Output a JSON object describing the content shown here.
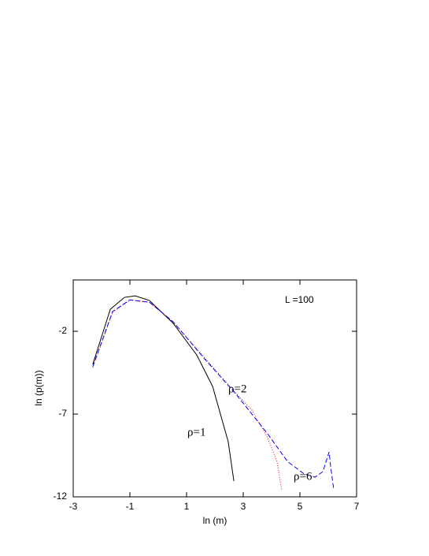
{
  "chart_data": {
    "type": "line",
    "x_label": "ln (m)",
    "y_label": "ln (p(m))",
    "annotation": "L =100",
    "xlim": [
      -3,
      7
    ],
    "xticks": [
      -3,
      -1,
      1,
      3,
      5,
      7
    ],
    "ylim": [
      -12,
      1.1
    ],
    "yticks": [
      -12,
      -7,
      -2
    ],
    "series": [
      {
        "name": "ρ=1",
        "color": "#000000",
        "dash": "solid",
        "x": [
          -2.31,
          -1.69,
          -1.19,
          -0.81,
          -0.31,
          0.53,
          1.36,
          1.92,
          2.47,
          2.67
        ],
        "values": [
          -4.0,
          -0.67,
          0.05,
          0.14,
          -0.14,
          -1.52,
          -3.43,
          -5.33,
          -8.67,
          -11.05
        ]
      },
      {
        "name": "ρ=2",
        "color": "#ff0000",
        "dash": "dotted",
        "x": [
          -2.31,
          -1.61,
          -1.0,
          -0.31,
          0.53,
          1.64,
          2.75,
          3.31,
          3.86,
          4.19,
          4.36
        ],
        "values": [
          -4.2,
          -0.85,
          -0.12,
          -0.26,
          -1.43,
          -3.6,
          -5.75,
          -6.76,
          -8.43,
          -9.86,
          -11.6
        ]
      },
      {
        "name": "ρ=6",
        "color": "#0000ff",
        "dash": "dashed",
        "x": [
          -2.31,
          -1.61,
          -1.0,
          -0.31,
          0.53,
          1.64,
          2.75,
          3.86,
          4.56,
          5.11,
          5.53,
          5.81,
          6.03,
          6.08,
          6.19
        ],
        "values": [
          -4.14,
          -0.81,
          -0.1,
          -0.24,
          -1.43,
          -3.67,
          -5.81,
          -8.19,
          -9.86,
          -10.57,
          -10.81,
          -10.48,
          -9.29,
          -10.1,
          -11.52
        ]
      }
    ]
  }
}
